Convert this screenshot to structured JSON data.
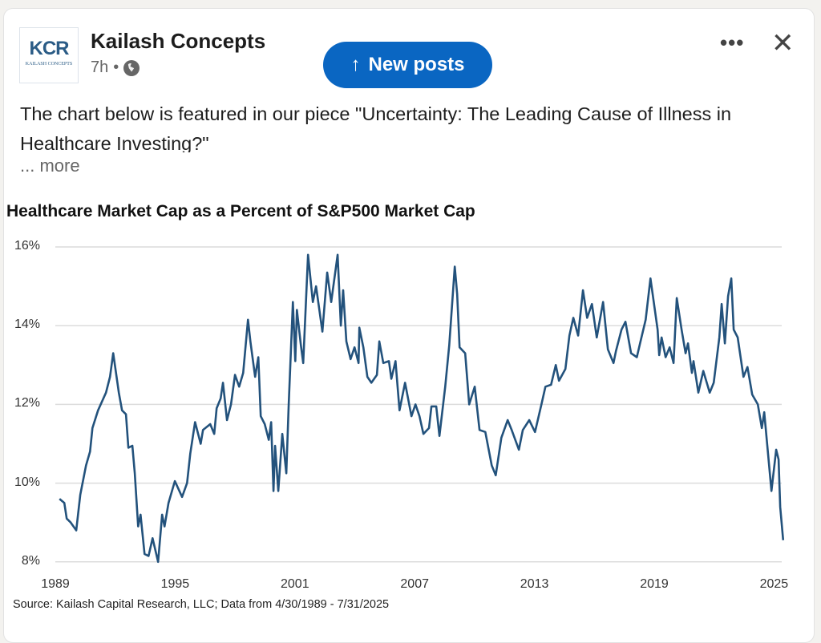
{
  "post": {
    "author": "Kailash Concepts",
    "logo_text": "KCR",
    "logo_subtext": "KAILASH CONCEPTS",
    "time": "7h",
    "separator": "•",
    "visibility_icon": "globe-icon",
    "new_posts_label": "New posts",
    "new_posts_icon": "↑",
    "menu_label": "•••",
    "close_label": "✕",
    "text": "The chart below is featured in our piece \"Uncertainty: The Leading Cause of Illness in Healthcare Investing?\"",
    "see_more": "... more",
    "accent_color": "#0a66c2"
  },
  "chart_data": {
    "type": "line",
    "title": "Healthcare Market Cap as a Percent of S&P500 Market Cap",
    "source": "Source: Kailash Capital Research, LLC; Data from 4/30/1989 - 7/31/2025",
    "xlabel": "",
    "ylabel": "",
    "x_ticks": [
      "1989",
      "1995",
      "2001",
      "2007",
      "2013",
      "2019",
      "2025"
    ],
    "y_ticks": [
      "16%",
      "14%",
      "12%",
      "10%",
      "8%"
    ],
    "ylim": [
      8,
      16
    ],
    "xlim": [
      1989,
      2025.6
    ],
    "grid": "horizontal",
    "line_color": "#23527c",
    "series": [
      {
        "x": [
          1989.33,
          1989.57,
          1989.69,
          1989.89,
          1990.17,
          1990.37,
          1990.66,
          1990.86,
          1990.98,
          1991.26,
          1991.66,
          1991.86,
          1992.02,
          1992.3,
          1992.46,
          1992.66,
          1992.78,
          1992.98,
          1993.1,
          1993.27,
          1993.39,
          1993.59,
          1993.79,
          1993.99,
          1994.27,
          1994.47,
          1994.59,
          1994.79,
          1994.99,
          1995.11,
          1995.47,
          1995.72,
          1995.88,
          1996.12,
          1996.4,
          1996.52,
          1996.88,
          1997.08,
          1997.2,
          1997.4,
          1997.52,
          1997.72,
          1997.92,
          1998.12,
          1998.33,
          1998.53,
          1998.77,
          1998.89,
          1999.13,
          1999.29,
          1999.41,
          1999.61,
          1999.81,
          1999.93,
          2000.05,
          2000.13,
          2000.29,
          2000.49,
          2000.69,
          2000.81,
          2001.02,
          2001.14,
          2001.22,
          2001.42,
          2001.54,
          2001.78,
          2002.02,
          2002.18,
          2002.5,
          2002.74,
          2002.94,
          2003.26,
          2003.42,
          2003.54,
          2003.7,
          2003.91,
          2004.11,
          2004.31,
          2004.35,
          2004.55,
          2004.75,
          2004.95,
          2005.23,
          2005.35,
          2005.55,
          2005.83,
          2005.95,
          2006.16,
          2006.36,
          2006.64,
          2006.96,
          2007.16,
          2007.36,
          2007.56,
          2007.84,
          2007.96,
          2008.2,
          2008.36,
          2008.65,
          2008.85,
          2009.13,
          2009.25,
          2009.37,
          2009.65,
          2009.85,
          2010.13,
          2010.37,
          2010.66,
          2010.98,
          2011.18,
          2011.46,
          2011.78,
          2011.98,
          2012.34,
          2012.54,
          2012.86,
          2013.15,
          2013.47,
          2013.67,
          2013.95,
          2014.19,
          2014.35,
          2014.67,
          2014.87,
          2015.07,
          2015.31,
          2015.55,
          2015.76,
          2016.0,
          2016.24,
          2016.56,
          2016.8,
          2017.08,
          2017.2,
          2017.48,
          2017.68,
          2017.96,
          2018.25,
          2018.41,
          2018.69,
          2018.93,
          2019.29,
          2019.37,
          2019.49,
          2019.69,
          2019.89,
          2020.09,
          2020.25,
          2020.49,
          2020.69,
          2020.81,
          2021.01,
          2021.09,
          2021.33,
          2021.58,
          2021.9,
          2022.1,
          2022.38,
          2022.5,
          2022.66,
          2022.82,
          2022.98,
          2023.1,
          2023.3,
          2023.59,
          2023.79,
          2024.03,
          2024.31,
          2024.51,
          2024.63,
          2024.99,
          2025.23,
          2025.35,
          2025.43,
          2025.58
        ],
        "values": [
          9.6,
          9.5,
          9.1,
          9.0,
          8.8,
          9.7,
          10.45,
          10.8,
          11.4,
          11.85,
          12.3,
          12.7,
          13.3,
          12.3,
          11.85,
          11.75,
          10.9,
          10.95,
          10.25,
          8.9,
          9.2,
          8.2,
          8.15,
          8.6,
          8.0,
          9.2,
          8.9,
          9.5,
          9.85,
          10.05,
          9.65,
          10.0,
          10.75,
          11.55,
          11.0,
          11.35,
          11.5,
          11.25,
          11.9,
          12.15,
          12.55,
          11.6,
          12.0,
          12.75,
          12.45,
          12.8,
          14.15,
          13.6,
          12.7,
          13.2,
          11.7,
          11.5,
          11.1,
          11.55,
          9.8,
          10.95,
          9.8,
          11.25,
          10.25,
          12.0,
          14.6,
          13.1,
          14.4,
          13.5,
          13.05,
          15.8,
          14.6,
          15.0,
          13.85,
          15.35,
          14.6,
          15.8,
          14.0,
          14.9,
          13.6,
          13.15,
          13.45,
          13.05,
          13.95,
          13.45,
          12.7,
          12.55,
          12.75,
          13.6,
          13.05,
          13.1,
          12.65,
          13.1,
          11.85,
          12.55,
          11.7,
          12.0,
          11.7,
          11.25,
          11.4,
          11.95,
          11.95,
          11.2,
          12.45,
          13.5,
          15.5,
          14.8,
          13.45,
          13.3,
          12.0,
          12.45,
          11.35,
          11.3,
          10.45,
          10.2,
          11.15,
          11.6,
          11.35,
          10.85,
          11.35,
          11.6,
          11.3,
          12.0,
          12.45,
          12.5,
          13.0,
          12.6,
          12.9,
          13.75,
          14.2,
          13.75,
          14.9,
          14.2,
          14.55,
          13.7,
          14.6,
          13.4,
          13.05,
          13.35,
          13.9,
          14.1,
          13.3,
          13.2,
          13.55,
          14.15,
          15.2,
          13.9,
          13.25,
          13.7,
          13.2,
          13.45,
          13.05,
          14.7,
          13.9,
          13.3,
          13.55,
          12.8,
          13.1,
          12.3,
          12.85,
          12.3,
          12.55,
          13.7,
          14.55,
          13.55,
          14.75,
          15.2,
          13.9,
          13.7,
          12.7,
          12.95,
          12.25,
          12.0,
          11.4,
          11.8,
          9.8,
          10.85,
          10.6,
          9.4,
          8.55
        ]
      }
    ]
  }
}
